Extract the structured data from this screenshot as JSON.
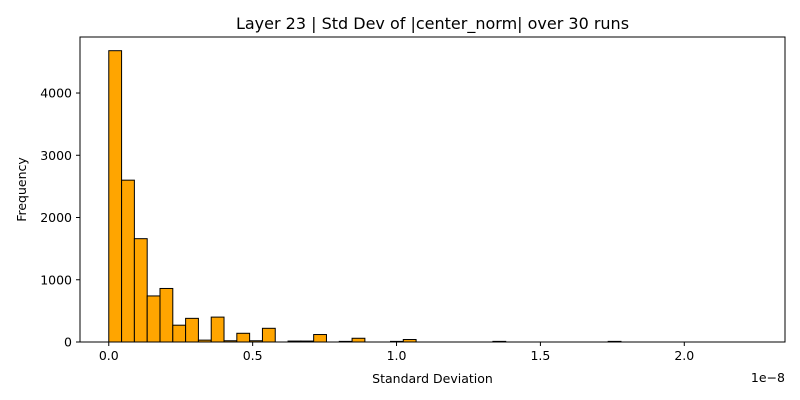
{
  "chart_data": {
    "type": "bar",
    "title": "Layer 23 | Std Dev of |center_norm| over 30 runs",
    "xlabel": "Standard Deviation",
    "ylabel": "Frequency",
    "x_offset_text": "1e−8",
    "x_scale": 1e-08,
    "xlim": [
      -0.1,
      2.35
    ],
    "ylim": [
      0,
      4900
    ],
    "xticks": [
      {
        "value": 0.0,
        "label": "0.0"
      },
      {
        "value": 0.5,
        "label": "0.5"
      },
      {
        "value": 1.0,
        "label": "1.0"
      },
      {
        "value": 1.5,
        "label": "1.5"
      },
      {
        "value": 2.0,
        "label": "2.0"
      }
    ],
    "yticks": [
      {
        "value": 0,
        "label": "0"
      },
      {
        "value": 1000,
        "label": "1000"
      },
      {
        "value": 2000,
        "label": "2000"
      },
      {
        "value": 3000,
        "label": "3000"
      },
      {
        "value": 4000,
        "label": "4000"
      }
    ],
    "grid": false,
    "bar_color": "#ffa500",
    "bar_edge_color": "#000000",
    "bin_start": 0.0,
    "bin_width": 0.0445,
    "values": [
      4680,
      2600,
      1660,
      740,
      860,
      270,
      380,
      30,
      400,
      20,
      140,
      20,
      220,
      0,
      15,
      15,
      120,
      0,
      10,
      60,
      0,
      0,
      10,
      40,
      0,
      0,
      0,
      0,
      0,
      0,
      10,
      0,
      0,
      0,
      0,
      0,
      0,
      0,
      0,
      10,
      0,
      0,
      0,
      0,
      0,
      0,
      0,
      0,
      0,
      0
    ]
  }
}
